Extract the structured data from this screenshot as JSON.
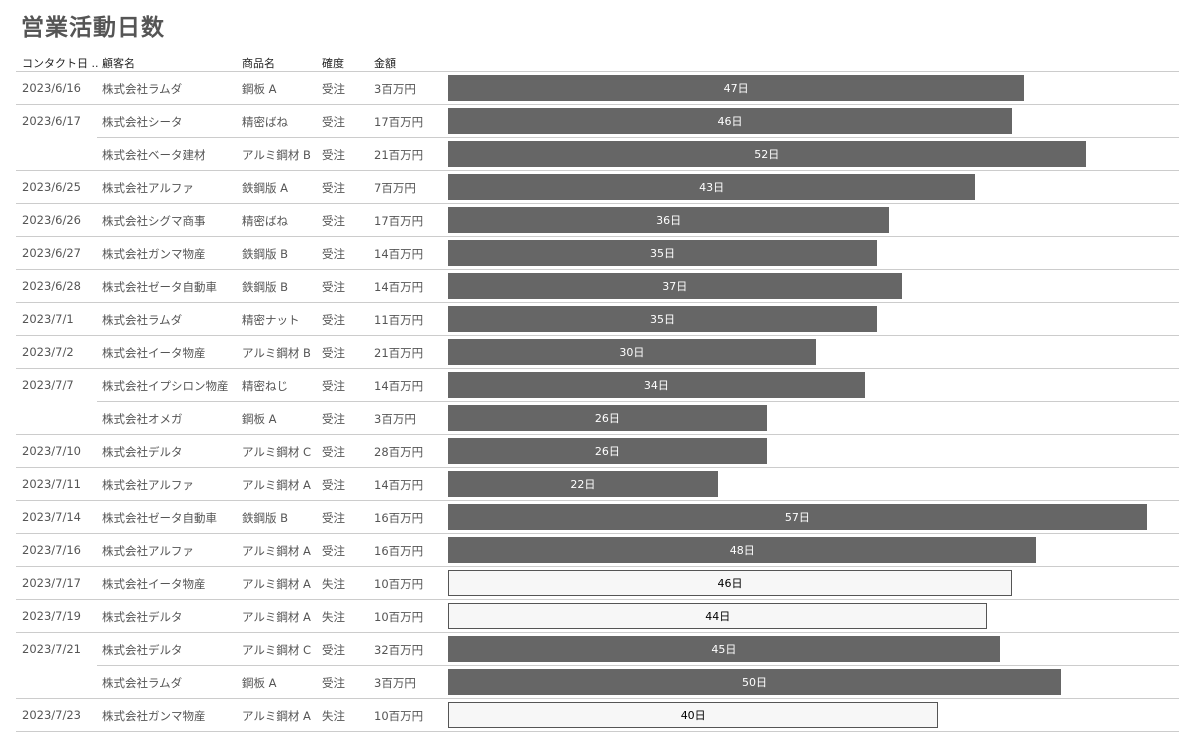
{
  "title": "営業活動日数",
  "headers": {
    "date": "コンタクト日 ..",
    "customer": "顧客名",
    "product": "商品名",
    "certainty": "確度",
    "amount": "金額"
  },
  "colors": {
    "won_bar": "#666666",
    "lost_bar": "#f7f7f7",
    "lost_border": "#555555"
  },
  "rows": [
    {
      "date": "2023/6/16",
      "customer": "株式会社ラムダ",
      "product": "鋼板 A",
      "certainty": "受注",
      "amount": "3百万円",
      "days": 47,
      "label": "47日"
    },
    {
      "date": "2023/6/17",
      "customer": "株式会社シータ",
      "product": "精密ばね",
      "certainty": "受注",
      "amount": "17百万円",
      "days": 46,
      "label": "46日"
    },
    {
      "date": "",
      "customer": "株式会社ベータ建材",
      "product": "アルミ鋼材 B",
      "certainty": "受注",
      "amount": "21百万円",
      "days": 52,
      "label": "52日"
    },
    {
      "date": "2023/6/25",
      "customer": "株式会社アルファ",
      "product": "鉄鋼版 A",
      "certainty": "受注",
      "amount": "7百万円",
      "days": 43,
      "label": "43日"
    },
    {
      "date": "2023/6/26",
      "customer": "株式会社シグマ商事",
      "product": "精密ばね",
      "certainty": "受注",
      "amount": "17百万円",
      "days": 36,
      "label": "36日"
    },
    {
      "date": "2023/6/27",
      "customer": "株式会社ガンマ物産",
      "product": "鉄鋼版 B",
      "certainty": "受注",
      "amount": "14百万円",
      "days": 35,
      "label": "35日"
    },
    {
      "date": "2023/6/28",
      "customer": "株式会社ゼータ自動車",
      "product": "鉄鋼版 B",
      "certainty": "受注",
      "amount": "14百万円",
      "days": 37,
      "label": "37日"
    },
    {
      "date": "2023/7/1",
      "customer": "株式会社ラムダ",
      "product": "精密ナット",
      "certainty": "受注",
      "amount": "11百万円",
      "days": 35,
      "label": "35日"
    },
    {
      "date": "2023/7/2",
      "customer": "株式会社イータ物産",
      "product": "アルミ鋼材 B",
      "certainty": "受注",
      "amount": "21百万円",
      "days": 30,
      "label": "30日"
    },
    {
      "date": "2023/7/7",
      "customer": "株式会社イプシロン物産",
      "product": "精密ねじ",
      "certainty": "受注",
      "amount": "14百万円",
      "days": 34,
      "label": "34日"
    },
    {
      "date": "",
      "customer": "株式会社オメガ",
      "product": "鋼板 A",
      "certainty": "受注",
      "amount": "3百万円",
      "days": 26,
      "label": "26日"
    },
    {
      "date": "2023/7/10",
      "customer": "株式会社デルタ",
      "product": "アルミ鋼材 C",
      "certainty": "受注",
      "amount": "28百万円",
      "days": 26,
      "label": "26日"
    },
    {
      "date": "2023/7/11",
      "customer": "株式会社アルファ",
      "product": "アルミ鋼材 A",
      "certainty": "受注",
      "amount": "14百万円",
      "days": 22,
      "label": "22日"
    },
    {
      "date": "2023/7/14",
      "customer": "株式会社ゼータ自動車",
      "product": "鉄鋼版 B",
      "certainty": "受注",
      "amount": "16百万円",
      "days": 57,
      "label": "57日"
    },
    {
      "date": "2023/7/16",
      "customer": "株式会社アルファ",
      "product": "アルミ鋼材 A",
      "certainty": "受注",
      "amount": "16百万円",
      "days": 48,
      "label": "48日"
    },
    {
      "date": "2023/7/17",
      "customer": "株式会社イータ物産",
      "product": "アルミ鋼材 A",
      "certainty": "失注",
      "amount": "10百万円",
      "days": 46,
      "label": "46日"
    },
    {
      "date": "2023/7/19",
      "customer": "株式会社デルタ",
      "product": "アルミ鋼材 A",
      "certainty": "失注",
      "amount": "10百万円",
      "days": 44,
      "label": "44日"
    },
    {
      "date": "2023/7/21",
      "customer": "株式会社デルタ",
      "product": "アルミ鋼材 C",
      "certainty": "受注",
      "amount": "32百万円",
      "days": 45,
      "label": "45日"
    },
    {
      "date": "",
      "customer": "株式会社ラムダ",
      "product": "鋼板 A",
      "certainty": "受注",
      "amount": "3百万円",
      "days": 50,
      "label": "50日"
    },
    {
      "date": "2023/7/23",
      "customer": "株式会社ガンマ物産",
      "product": "アルミ鋼材 A",
      "certainty": "失注",
      "amount": "10百万円",
      "days": 40,
      "label": "40日"
    }
  ]
}
